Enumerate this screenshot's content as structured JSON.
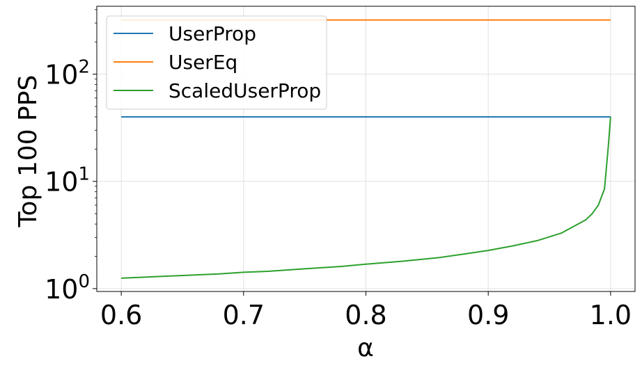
{
  "chart_data": {
    "type": "line",
    "title": "",
    "xlabel": "α",
    "ylabel": "Top 100 PPS",
    "yscale": "log",
    "xlim": [
      0.58,
      1.02
    ],
    "ylim": [
      0.94,
      430
    ],
    "grid": true,
    "legend_position": "top-left",
    "x_ticks": [
      {
        "value": 0.6,
        "label": "0.6"
      },
      {
        "value": 0.7,
        "label": "0.7"
      },
      {
        "value": 0.8,
        "label": "0.8"
      },
      {
        "value": 0.9,
        "label": "0.9"
      },
      {
        "value": 1.0,
        "label": "1.0"
      }
    ],
    "y_ticks": [
      {
        "value": 1,
        "base": "10",
        "exp": "0"
      },
      {
        "value": 10,
        "base": "10",
        "exp": "1"
      },
      {
        "value": 100,
        "base": "10",
        "exp": "2"
      }
    ],
    "series": [
      {
        "name": "UserProp",
        "color": "#1f77b4",
        "x": [
          0.6,
          0.7,
          0.8,
          0.9,
          1.0
        ],
        "y": [
          40,
          40,
          40,
          40,
          40
        ]
      },
      {
        "name": "UserEq",
        "color": "#ff7f0e",
        "x": [
          0.6,
          0.7,
          0.8,
          0.9,
          1.0
        ],
        "y": [
          320,
          320,
          320,
          320,
          320
        ]
      },
      {
        "name": "ScaledUserProp",
        "color": "#2ca02c",
        "x": [
          0.6,
          0.64,
          0.68,
          0.7,
          0.72,
          0.75,
          0.78,
          0.8,
          0.83,
          0.86,
          0.88,
          0.9,
          0.92,
          0.94,
          0.96,
          0.98,
          0.985,
          0.99,
          0.995,
          0.998,
          1.0
        ],
        "y": [
          1.25,
          1.31,
          1.37,
          1.42,
          1.45,
          1.53,
          1.61,
          1.69,
          1.8,
          1.95,
          2.1,
          2.27,
          2.5,
          2.8,
          3.3,
          4.4,
          5.0,
          6.0,
          8.5,
          20,
          40
        ]
      }
    ]
  }
}
